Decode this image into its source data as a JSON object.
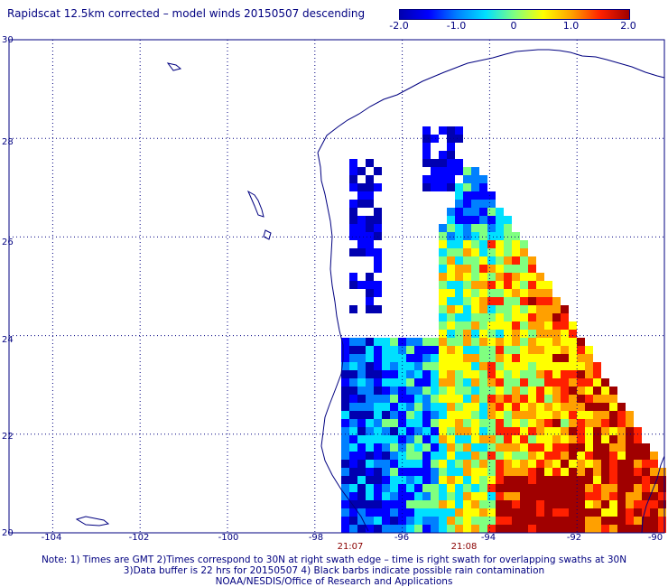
{
  "title": "Rapidscat 12.5km corrected – model winds 20150507 descending",
  "colorbar": {
    "labels": [
      "-2.0",
      "-1.0",
      "0",
      "1.0",
      "2.0"
    ],
    "label_values": [
      -2.0,
      -1.0,
      0,
      1.0,
      2.0
    ],
    "min": -2.0,
    "max": 2.0,
    "colors": [
      "#0000b0",
      "#0000ff",
      "#0080ff",
      "#00e0ff",
      "#80ff80",
      "#ffff00",
      "#ffa000",
      "#ff2000",
      "#a00000"
    ]
  },
  "axes": {
    "lon_ticks": [
      "-104",
      "-102",
      "-100",
      "-98",
      "-96",
      "-94",
      "-92",
      "-90"
    ],
    "lon_values": [
      -104,
      -102,
      -100,
      -98,
      -96,
      -94,
      -92,
      -90
    ],
    "lat_ticks": [
      "30",
      "28",
      "26",
      "24",
      "22",
      "20"
    ],
    "lat_values": [
      30,
      28,
      26,
      24,
      22,
      20
    ],
    "lon_range": [
      -105,
      -90
    ],
    "lat_range": [
      20,
      30
    ],
    "grid": "dotted"
  },
  "swath_times": [
    {
      "label": "21:07",
      "lon": -97.3
    },
    {
      "label": "21:08",
      "lon": -94.7
    }
  ],
  "notes": [
    "Note: 1) Times are GMT 2)Times correspond to 30N at right swath edge – time is right swath for overlapping swaths at 30N",
    "3)Data buffer is 22 hrs for 20150507 4) Black barbs indicate possible rain contamination",
    "NOAA/NESDIS/Office of Research and Applications"
  ],
  "chart_data": {
    "type": "heatmap",
    "title": "Rapidscat 12.5km corrected – model winds 20150507 descending",
    "xlabel": "",
    "ylabel": "",
    "xlim": [
      -105,
      -90
    ],
    "ylim": [
      20,
      30
    ],
    "value_range": [
      -2.0,
      2.0
    ]
  }
}
